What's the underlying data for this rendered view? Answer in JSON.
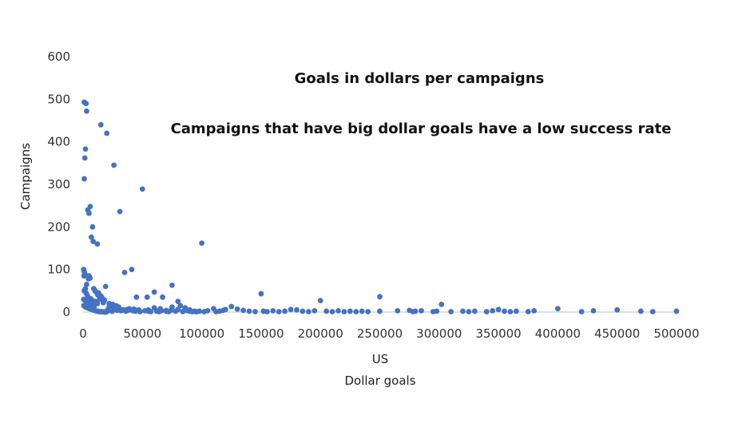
{
  "chart_data": {
    "type": "scatter",
    "title": "Goals in dollars per campaigns",
    "subtitle": "Campaigns that have big dollar goals have a low success rate",
    "xlabel_lines": [
      "US",
      "Dollar goals"
    ],
    "ylabel": "Campaigns",
    "xlim": [
      0,
      500000
    ],
    "ylim": [
      0,
      600
    ],
    "x_ticks": [
      "0",
      "50000",
      "100000",
      "150000",
      "200000",
      "250000",
      "300000",
      "350000",
      "400000",
      "450000",
      "500000"
    ],
    "y_ticks": [
      "0",
      "100",
      "200",
      "300",
      "400",
      "500",
      "600"
    ],
    "grid": false,
    "legend": "none",
    "marker_color": "#4472c4",
    "points": [
      [
        1000,
        493
      ],
      [
        2500,
        490
      ],
      [
        3000,
        472
      ],
      [
        2000,
        383
      ],
      [
        1500,
        362
      ],
      [
        1000,
        313
      ],
      [
        4000,
        240
      ],
      [
        5000,
        232
      ],
      [
        6000,
        248
      ],
      [
        8000,
        200
      ],
      [
        7000,
        176
      ],
      [
        8500,
        166
      ],
      [
        12000,
        160
      ],
      [
        15000,
        440
      ],
      [
        20000,
        420
      ],
      [
        26000,
        345
      ],
      [
        31000,
        236
      ],
      [
        50000,
        289
      ],
      [
        35000,
        93
      ],
      [
        41000,
        100
      ],
      [
        100000,
        162
      ],
      [
        75000,
        63
      ],
      [
        60000,
        47
      ],
      [
        67000,
        35
      ],
      [
        80000,
        25
      ],
      [
        150000,
        43
      ],
      [
        200000,
        27
      ],
      [
        250000,
        36
      ],
      [
        302000,
        18
      ],
      [
        500,
        100
      ],
      [
        1000,
        95
      ],
      [
        1500,
        90
      ],
      [
        800,
        85
      ],
      [
        5000,
        85
      ],
      [
        6000,
        80
      ],
      [
        4500,
        78
      ],
      [
        9000,
        55
      ],
      [
        10000,
        50
      ],
      [
        11000,
        47
      ],
      [
        13000,
        45
      ],
      [
        12500,
        40
      ],
      [
        15000,
        38
      ],
      [
        16000,
        34
      ],
      [
        19000,
        60
      ],
      [
        22000,
        20
      ],
      [
        25000,
        18
      ],
      [
        28000,
        15
      ],
      [
        30000,
        12
      ],
      [
        3000,
        65
      ],
      [
        2000,
        55
      ],
      [
        1000,
        50
      ],
      [
        2500,
        45
      ],
      [
        3500,
        40
      ],
      [
        4000,
        35
      ],
      [
        6000,
        32
      ],
      [
        7000,
        30
      ],
      [
        500,
        30
      ],
      [
        1200,
        28
      ],
      [
        2200,
        26
      ],
      [
        3200,
        24
      ],
      [
        4200,
        22
      ],
      [
        5200,
        20
      ],
      [
        6200,
        18
      ],
      [
        7200,
        16
      ],
      [
        8200,
        14
      ],
      [
        9200,
        12
      ],
      [
        600,
        15
      ],
      [
        1600,
        13
      ],
      [
        2600,
        11
      ],
      [
        3600,
        10
      ],
      [
        4600,
        9
      ],
      [
        5600,
        8
      ],
      [
        6600,
        7
      ],
      [
        7600,
        6
      ],
      [
        8600,
        5
      ],
      [
        9600,
        4
      ],
      [
        10600,
        3
      ],
      [
        11600,
        2
      ],
      [
        12600,
        2
      ],
      [
        13600,
        1
      ],
      [
        14600,
        1
      ],
      [
        15600,
        1
      ],
      [
        16600,
        1
      ],
      [
        17600,
        0
      ],
      [
        18600,
        0
      ],
      [
        19600,
        0
      ],
      [
        20600,
        5
      ],
      [
        21600,
        4
      ],
      [
        23600,
        3
      ],
      [
        24600,
        2
      ],
      [
        27000,
        6
      ],
      [
        29000,
        4
      ],
      [
        32000,
        3
      ],
      [
        34000,
        5
      ],
      [
        36000,
        2
      ],
      [
        38000,
        4
      ],
      [
        40000,
        6
      ],
      [
        42000,
        3
      ],
      [
        44000,
        2
      ],
      [
        45000,
        35
      ],
      [
        46000,
        4
      ],
      [
        48000,
        1
      ],
      [
        52000,
        3
      ],
      [
        54000,
        35
      ],
      [
        55000,
        2
      ],
      [
        57000,
        1
      ],
      [
        62000,
        2
      ],
      [
        64000,
        1
      ],
      [
        66000,
        3
      ],
      [
        70000,
        2
      ],
      [
        72000,
        1
      ],
      [
        74000,
        4
      ],
      [
        78000,
        2
      ],
      [
        82000,
        15
      ],
      [
        84000,
        1
      ],
      [
        86000,
        10
      ],
      [
        88000,
        3
      ],
      [
        90000,
        5
      ],
      [
        92000,
        1
      ],
      [
        94000,
        2
      ],
      [
        96000,
        1
      ],
      [
        98000,
        2
      ],
      [
        102000,
        1
      ],
      [
        105000,
        3
      ],
      [
        110000,
        8
      ],
      [
        112000,
        1
      ],
      [
        115000,
        2
      ],
      [
        118000,
        4
      ],
      [
        120000,
        6
      ],
      [
        125000,
        13
      ],
      [
        130000,
        7
      ],
      [
        135000,
        4
      ],
      [
        140000,
        2
      ],
      [
        145000,
        1
      ],
      [
        152000,
        2
      ],
      [
        155000,
        1
      ],
      [
        160000,
        3
      ],
      [
        165000,
        1
      ],
      [
        170000,
        2
      ],
      [
        175000,
        6
      ],
      [
        180000,
        5
      ],
      [
        185000,
        2
      ],
      [
        190000,
        1
      ],
      [
        195000,
        3
      ],
      [
        205000,
        2
      ],
      [
        210000,
        1
      ],
      [
        215000,
        3
      ],
      [
        220000,
        1
      ],
      [
        225000,
        2
      ],
      [
        230000,
        1
      ],
      [
        235000,
        2
      ],
      [
        240000,
        1
      ],
      [
        250000,
        2
      ],
      [
        265000,
        3
      ],
      [
        275000,
        4
      ],
      [
        278000,
        1
      ],
      [
        280000,
        2
      ],
      [
        285000,
        3
      ],
      [
        295000,
        1
      ],
      [
        298000,
        2
      ],
      [
        310000,
        1
      ],
      [
        320000,
        2
      ],
      [
        325000,
        1
      ],
      [
        330000,
        2
      ],
      [
        340000,
        1
      ],
      [
        345000,
        3
      ],
      [
        350000,
        6
      ],
      [
        355000,
        2
      ],
      [
        360000,
        1
      ],
      [
        365000,
        2
      ],
      [
        375000,
        1
      ],
      [
        380000,
        3
      ],
      [
        400000,
        8
      ],
      [
        420000,
        1
      ],
      [
        430000,
        3
      ],
      [
        450000,
        5
      ],
      [
        470000,
        2
      ],
      [
        480000,
        1
      ],
      [
        500000,
        2
      ],
      [
        55000,
        5
      ],
      [
        60000,
        10
      ],
      [
        65000,
        8
      ],
      [
        70000,
        4
      ],
      [
        75000,
        12
      ],
      [
        80000,
        6
      ],
      [
        85000,
        3
      ],
      [
        90000,
        2
      ],
      [
        95000,
        1
      ],
      [
        18000,
        28
      ],
      [
        17000,
        22
      ],
      [
        14000,
        30
      ],
      [
        12000,
        20
      ],
      [
        10500,
        25
      ],
      [
        9500,
        18
      ],
      [
        8800,
        22
      ],
      [
        7800,
        26
      ],
      [
        6800,
        24
      ],
      [
        5800,
        28
      ],
      [
        22000,
        12
      ],
      [
        24000,
        8
      ],
      [
        26000,
        10
      ],
      [
        28000,
        7
      ],
      [
        30000,
        9
      ],
      [
        33000,
        5
      ],
      [
        37000,
        6
      ],
      [
        39000,
        8
      ],
      [
        43000,
        7
      ],
      [
        47000,
        5
      ]
    ]
  }
}
